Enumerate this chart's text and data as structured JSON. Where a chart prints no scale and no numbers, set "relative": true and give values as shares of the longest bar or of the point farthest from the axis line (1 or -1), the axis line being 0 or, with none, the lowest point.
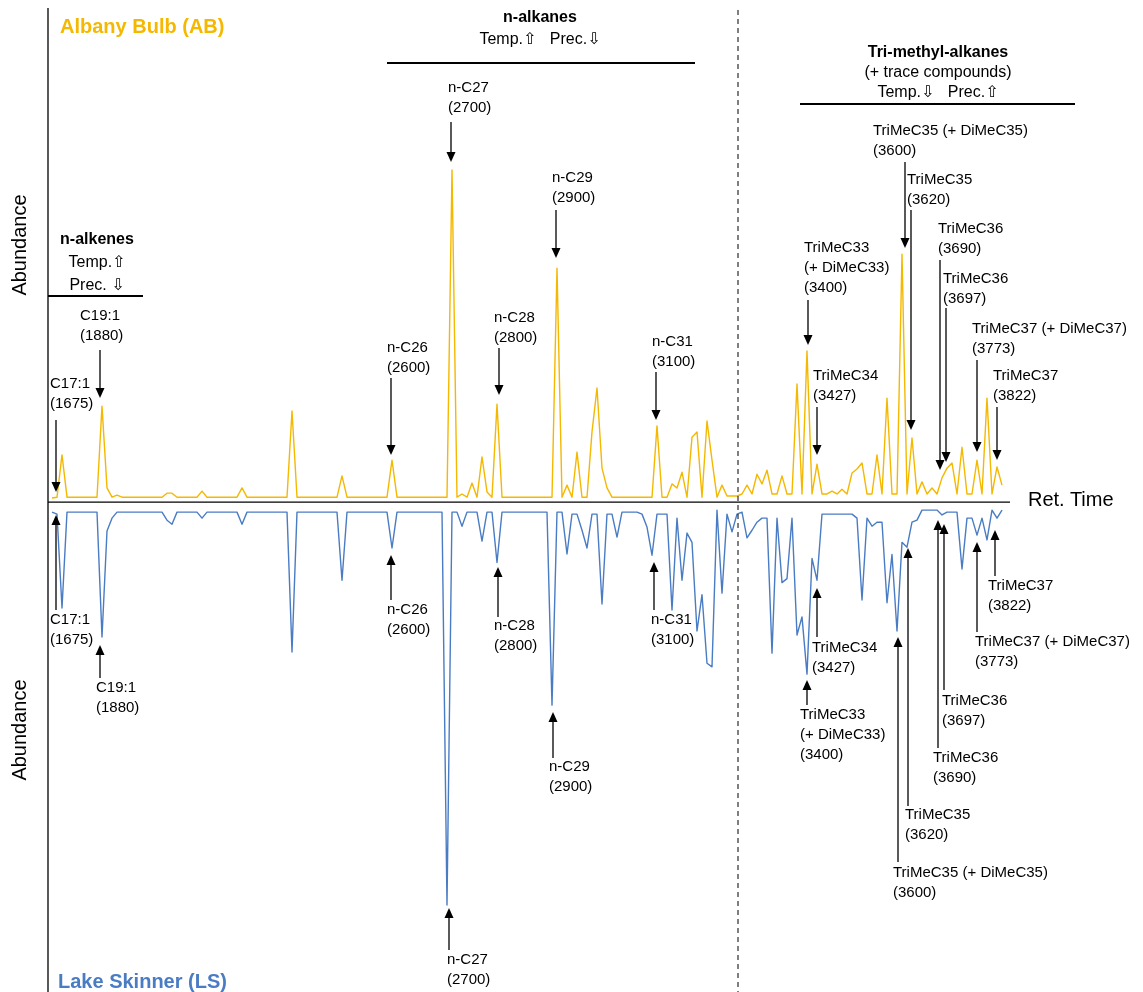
{
  "chart_data": {
    "type": "line",
    "relative": true,
    "xlabel": "Ret. Time",
    "ylabel": "Abundance",
    "categories": [
      null,
      null,
      null,
      null,
      null,
      null,
      null,
      null,
      null,
      null,
      null,
      null,
      null,
      null,
      null,
      null,
      null,
      null,
      null,
      null,
      null,
      null,
      null,
      null,
      null,
      null,
      null,
      null,
      null,
      null,
      null,
      null,
      null,
      null,
      null,
      null,
      null,
      null,
      null,
      null,
      null,
      null,
      null,
      null,
      null,
      null,
      null,
      null,
      null,
      null,
      null,
      null,
      null,
      null,
      null,
      null,
      null,
      null,
      null,
      null,
      null,
      null,
      null,
      null,
      null,
      null,
      null,
      null,
      null,
      null,
      null,
      null,
      null,
      null,
      null,
      null,
      null,
      null,
      null,
      null,
      null,
      null,
      null,
      null,
      null,
      null,
      null,
      null,
      null,
      null,
      null,
      null,
      null,
      null,
      null,
      null,
      null,
      null,
      null,
      null,
      null,
      null,
      null,
      null,
      null,
      null,
      null,
      null,
      null,
      null,
      null,
      null,
      null,
      null,
      null,
      null,
      null,
      null,
      null,
      null,
      null,
      null,
      null,
      null,
      null,
      null,
      null,
      null,
      null,
      null,
      null,
      null,
      null,
      null,
      null,
      null,
      null,
      null,
      null,
      null,
      null,
      null,
      null,
      null,
      null,
      null,
      null,
      null,
      null,
      null,
      null,
      null,
      null,
      null,
      null,
      null,
      null,
      null,
      null,
      null,
      null,
      null,
      null,
      null,
      null,
      null,
      null,
      null,
      null,
      null,
      null,
      null,
      null,
      null,
      null,
      null,
      null,
      null,
      null,
      null,
      null,
      null,
      null,
      null,
      null,
      null,
      null,
      null,
      null,
      null,
      null
    ],
    "series": [
      {
        "name": "Albany Bulb (AB)",
        "color": "#f5b800",
        "values": [
          0.01,
          0.012,
          0.117,
          0.012,
          0.012,
          0.012,
          0.012,
          0.012,
          0.012,
          0.012,
          0.238,
          0.035,
          0.012,
          0.017,
          0.012,
          0.012,
          0.012,
          0.012,
          0.012,
          0.012,
          0.012,
          0.012,
          0.012,
          0.022,
          0.022,
          0.012,
          0.012,
          0.012,
          0.012,
          0.012,
          0.027,
          0.012,
          0.012,
          0.012,
          0.012,
          0.012,
          0.012,
          0.012,
          0.035,
          0.012,
          0.012,
          0.012,
          0.012,
          0.012,
          0.012,
          0.012,
          0.012,
          0.012,
          0.226,
          0.012,
          0.012,
          0.012,
          0.012,
          0.012,
          0.012,
          0.012,
          0.012,
          0.012,
          0.065,
          0.012,
          0.012,
          0.012,
          0.012,
          0.012,
          0.012,
          0.012,
          0.012,
          0.012,
          0.104,
          0.012,
          0.012,
          0.012,
          0.012,
          0.012,
          0.012,
          0.012,
          0.012,
          0.012,
          0.012,
          0.012,
          0.824,
          0.012,
          0.02,
          0.012,
          0.047,
          0.012,
          0.112,
          0.025,
          0.012,
          0.243,
          0.012,
          0.012,
          0.012,
          0.012,
          0.012,
          0.012,
          0.012,
          0.012,
          0.012,
          0.012,
          0.012,
          0.58,
          0.012,
          0.042,
          0.012,
          0.124,
          0.012,
          0.012,
          0.174,
          0.283,
          0.084,
          0.035,
          0.012,
          0.012,
          0.012,
          0.012,
          0.012,
          0.012,
          0.012,
          0.012,
          0.012,
          0.189,
          0.012,
          0.012,
          0.045,
          0.035,
          0.074,
          0.012,
          0.161,
          0.174,
          0.012,
          0.201,
          0.104,
          0.012,
          0.042,
          0.015,
          0.015,
          0.015,
          0.02,
          0.042,
          0.02,
          0.069,
          0.045,
          0.079,
          0.02,
          0.02,
          0.065,
          0.02,
          0.02,
          0.293,
          0.02,
          0.375,
          0.02,
          0.094,
          0.02,
          0.02,
          0.027,
          0.02,
          0.032,
          0.02,
          0.072,
          0.082,
          0.097,
          0.02,
          0.02,
          0.117,
          0.02,
          0.258,
          0.02,
          0.02,
          0.615,
          0.02,
          0.159,
          0.02,
          0.05,
          0.02,
          0.035,
          0.02,
          0.06,
          0.084,
          0.097,
          0.02,
          0.136,
          0.02,
          0.02,
          0.104,
          0.02,
          0.258,
          0.02,
          0.087,
          0.042
        ]
      },
      {
        "name": "Lake Skinner (LS)",
        "color": "#4a7cc4",
        "values": [
          -0.025,
          -0.03,
          -0.263,
          -0.025,
          -0.025,
          -0.025,
          -0.025,
          -0.025,
          -0.025,
          -0.025,
          -0.335,
          -0.072,
          -0.04,
          -0.025,
          -0.025,
          -0.025,
          -0.025,
          -0.025,
          -0.025,
          -0.025,
          -0.025,
          -0.025,
          -0.025,
          -0.045,
          -0.055,
          -0.025,
          -0.025,
          -0.025,
          -0.025,
          -0.025,
          -0.04,
          -0.025,
          -0.025,
          -0.025,
          -0.025,
          -0.025,
          -0.025,
          -0.025,
          -0.055,
          -0.025,
          -0.025,
          -0.025,
          -0.025,
          -0.025,
          -0.025,
          -0.025,
          -0.025,
          -0.025,
          -0.372,
          -0.025,
          -0.025,
          -0.025,
          -0.025,
          -0.025,
          -0.025,
          -0.025,
          -0.025,
          -0.025,
          -0.194,
          -0.025,
          -0.025,
          -0.025,
          -0.025,
          -0.025,
          -0.025,
          -0.025,
          -0.025,
          -0.025,
          -0.114,
          -0.025,
          -0.025,
          -0.025,
          -0.025,
          -0.025,
          -0.025,
          -0.025,
          -0.025,
          -0.025,
          -0.025,
          -1,
          -0.025,
          -0.025,
          -0.06,
          -0.025,
          -0.025,
          -0.025,
          -0.097,
          -0.025,
          -0.025,
          -0.15,
          -0.025,
          -0.025,
          -0.025,
          -0.025,
          -0.025,
          -0.025,
          -0.025,
          -0.025,
          -0.025,
          -0.025,
          -0.504,
          -0.025,
          -0.025,
          -0.129,
          -0.03,
          -0.03,
          -0.07,
          -0.114,
          -0.03,
          -0.03,
          -0.253,
          -0.03,
          -0.03,
          -0.087,
          -0.025,
          -0.025,
          -0.025,
          -0.025,
          -0.03,
          -0.062,
          -0.132,
          -0.03,
          -0.03,
          -0.03,
          -0.268,
          -0.04,
          -0.194,
          -0.077,
          -0.1,
          -0.32,
          -0.23,
          -0.4,
          -0.409,
          -0.02,
          -0.226,
          -0.03,
          -0.074,
          -0.03,
          -0.025,
          -0.089,
          -0.07,
          -0.05,
          -0.04,
          -0.04,
          -0.375,
          -0.04,
          -0.2,
          -0.19,
          -0.04,
          -0.33,
          -0.285,
          -0.427,
          -0.14,
          -0.194,
          -0.03,
          -0.03,
          -0.03,
          -0.03,
          -0.03,
          -0.03,
          -0.03,
          -0.04,
          -0.243,
          -0.04,
          -0.06,
          -0.05,
          -0.05,
          -0.25,
          -0.13,
          -0.32,
          -0.1,
          -0.112,
          -0.05,
          -0.045,
          -0.02,
          -0.02,
          -0.02,
          -0.02,
          -0.032,
          -0.025,
          -0.025,
          -0.025,
          -0.166,
          -0.04,
          -0.04,
          -0.082,
          -0.04,
          -0.094,
          -0.02,
          -0.04,
          -0.02
        ]
      }
    ],
    "annotations": [
      "n-alkenes\nTemp.⇧\nPrec. ⇩",
      "n-alkanes\nTemp.⇧   Prec.⇩",
      "Tri-methyl-alkanes\n(+ trace compounds)\nTemp.⇩   Prec.⇧",
      "C17:1\n(1675)",
      "C19:1\n(1880)",
      "n-C26\n(2600)",
      "n-C27\n(2700)",
      "n-C28\n(2800)",
      "n-C29\n(2900)",
      "n-C31\n(3100)",
      "TriMeC33\n(+ DiMeC33)\n(3400)",
      "TriMeC34\n(3427)",
      "TriMeC35 (+ DiMeC35)\n(3600)",
      "TriMeC35\n(3620)",
      "TriMeC36\n(3690)",
      "TriMeC36\n(3697)",
      "TriMeC37 (+ DiMeC37)\n(3773)",
      "TriMeC37\n(3822)",
      "C17:1\n(1675)",
      "C19:1\n(1880)",
      "n-C26\n(2600)",
      "n-C27\n(2700)",
      "n-C28\n(2800)",
      "n-C29\n(2900)",
      "n-C31\n(3100)",
      "TriMeC33\n(+ DiMeC33)\n(3400)",
      "TriMeC34\n(3427)",
      "TriMeC35 (+ DiMeC35)\n(3600)",
      "TriMeC35\n(3620)",
      "TriMeC36\n(3690)",
      "TriMeC36\n(3697)",
      "TriMeC37 (+ DiMeC37)\n(3773)",
      "TriMeC37\n(3822)"
    ]
  }
}
